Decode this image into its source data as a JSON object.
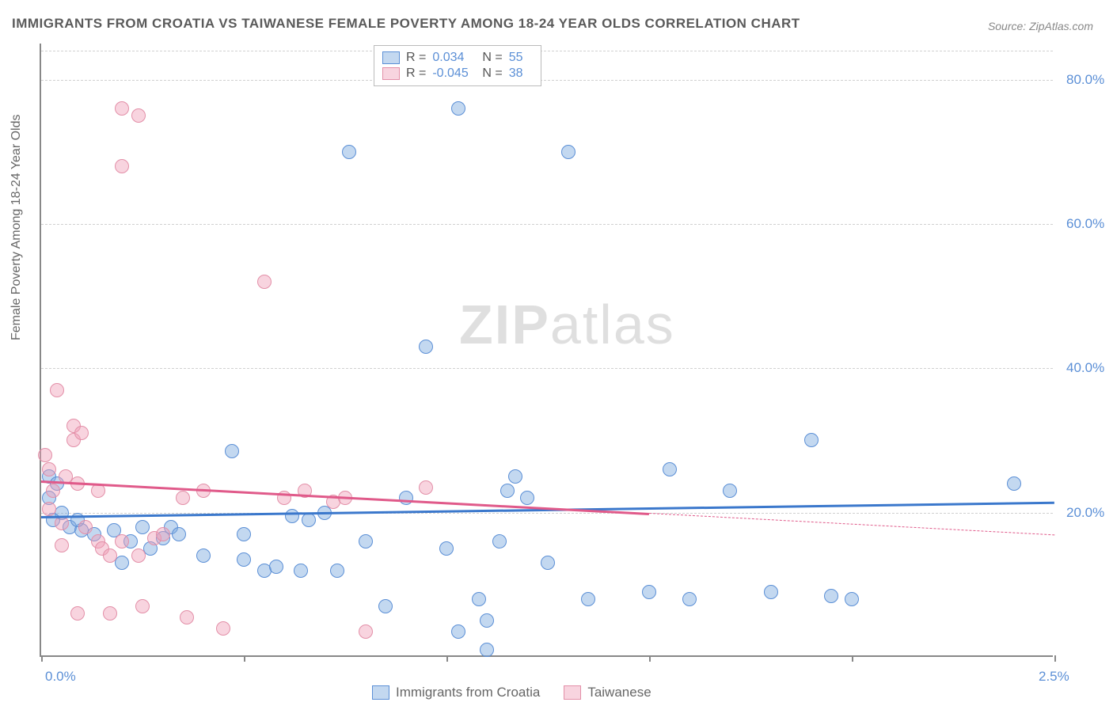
{
  "title": "IMMIGRANTS FROM CROATIA VS TAIWANESE FEMALE POVERTY AMONG 18-24 YEAR OLDS CORRELATION CHART",
  "source": "Source: ZipAtlas.com",
  "y_axis_title": "Female Poverty Among 18-24 Year Olds",
  "watermark_a": "ZIP",
  "watermark_b": "atlas",
  "chart": {
    "type": "scatter",
    "xlim": [
      0.0,
      2.5
    ],
    "ylim": [
      0.0,
      85.0
    ],
    "x_ticks": [
      0.0,
      0.5,
      1.0,
      1.5,
      2.0,
      2.5
    ],
    "x_tick_labels": [
      "0.0%",
      "",
      "",
      "",
      "",
      "2.5%"
    ],
    "y_gridlines": [
      20.0,
      40.0,
      60.0,
      80.0
    ],
    "y_tick_labels": [
      "20.0%",
      "40.0%",
      "60.0%",
      "80.0%"
    ],
    "background_color": "#ffffff",
    "grid_color": "#d0d0d0",
    "axis_color": "#888888",
    "label_color": "#5b8fd6",
    "title_color": "#5a5a5a",
    "title_fontsize": 17,
    "tick_fontsize": 17,
    "series": [
      {
        "name": "Immigrants from Croatia",
        "fill": "rgba(123,168,222,0.45)",
        "stroke": "#5b8fd6",
        "marker_radius": 9,
        "R": "0.034",
        "N": "55",
        "trend": {
          "x1": 0.0,
          "y1": 19.5,
          "x2": 2.5,
          "y2": 21.5,
          "color": "#3b78cc",
          "solid_until_x": 2.5
        },
        "points": [
          [
            0.02,
            25.0
          ],
          [
            0.02,
            22.0
          ],
          [
            0.04,
            24.0
          ],
          [
            0.05,
            20.0
          ],
          [
            0.03,
            19.0
          ],
          [
            0.07,
            18.0
          ],
          [
            0.1,
            17.5
          ],
          [
            0.09,
            19.0
          ],
          [
            0.13,
            17.0
          ],
          [
            0.18,
            17.5
          ],
          [
            0.2,
            13.0
          ],
          [
            0.22,
            16.0
          ],
          [
            0.25,
            18.0
          ],
          [
            0.27,
            15.0
          ],
          [
            0.3,
            16.5
          ],
          [
            0.32,
            18.0
          ],
          [
            0.34,
            17.0
          ],
          [
            0.4,
            14.0
          ],
          [
            0.47,
            28.5
          ],
          [
            0.5,
            17.0
          ],
          [
            0.5,
            13.5
          ],
          [
            0.55,
            12.0
          ],
          [
            0.58,
            12.5
          ],
          [
            0.62,
            19.5
          ],
          [
            0.64,
            12.0
          ],
          [
            0.66,
            19.0
          ],
          [
            0.7,
            20.0
          ],
          [
            0.73,
            12.0
          ],
          [
            0.76,
            70.0
          ],
          [
            0.8,
            16.0
          ],
          [
            0.85,
            7.0
          ],
          [
            0.9,
            22.0
          ],
          [
            0.95,
            43.0
          ],
          [
            1.0,
            15.0
          ],
          [
            1.03,
            3.5
          ],
          [
            1.03,
            76.0
          ],
          [
            1.08,
            8.0
          ],
          [
            1.1,
            5.0
          ],
          [
            1.1,
            1.0
          ],
          [
            1.13,
            16.0
          ],
          [
            1.15,
            23.0
          ],
          [
            1.17,
            25.0
          ],
          [
            1.2,
            22.0
          ],
          [
            1.25,
            13.0
          ],
          [
            1.3,
            70.0
          ],
          [
            1.35,
            8.0
          ],
          [
            1.5,
            9.0
          ],
          [
            1.55,
            26.0
          ],
          [
            1.6,
            8.0
          ],
          [
            1.7,
            23.0
          ],
          [
            1.8,
            9.0
          ],
          [
            1.9,
            30.0
          ],
          [
            1.95,
            8.5
          ],
          [
            2.0,
            8.0
          ],
          [
            2.4,
            24.0
          ]
        ]
      },
      {
        "name": "Taiwanese",
        "fill": "rgba(240,160,185,0.45)",
        "stroke": "#e38fa8",
        "marker_radius": 9,
        "R": "-0.045",
        "N": "38",
        "trend": {
          "x1": 0.0,
          "y1": 24.5,
          "x2": 2.5,
          "y2": 17.0,
          "color": "#e05a8a",
          "solid_until_x": 1.5
        },
        "points": [
          [
            0.01,
            28.0
          ],
          [
            0.02,
            26.0
          ],
          [
            0.02,
            20.5
          ],
          [
            0.03,
            23.0
          ],
          [
            0.04,
            37.0
          ],
          [
            0.05,
            15.5
          ],
          [
            0.06,
            25.0
          ],
          [
            0.05,
            18.5
          ],
          [
            0.08,
            30.0
          ],
          [
            0.08,
            32.0
          ],
          [
            0.09,
            24.0
          ],
          [
            0.09,
            6.0
          ],
          [
            0.1,
            31.0
          ],
          [
            0.11,
            18.0
          ],
          [
            0.14,
            23.0
          ],
          [
            0.14,
            16.0
          ],
          [
            0.15,
            15.0
          ],
          [
            0.17,
            6.0
          ],
          [
            0.17,
            14.0
          ],
          [
            0.2,
            68.0
          ],
          [
            0.2,
            16.0
          ],
          [
            0.2,
            76.0
          ],
          [
            0.24,
            75.0
          ],
          [
            0.24,
            14.0
          ],
          [
            0.25,
            7.0
          ],
          [
            0.28,
            16.5
          ],
          [
            0.3,
            17.0
          ],
          [
            0.35,
            22.0
          ],
          [
            0.36,
            5.5
          ],
          [
            0.4,
            23.0
          ],
          [
            0.45,
            4.0
          ],
          [
            0.55,
            52.0
          ],
          [
            0.6,
            22.0
          ],
          [
            0.65,
            23.0
          ],
          [
            0.72,
            21.5
          ],
          [
            0.75,
            22.0
          ],
          [
            0.8,
            3.5
          ],
          [
            0.95,
            23.5
          ]
        ]
      }
    ],
    "stats_box": {
      "label_R": "R =",
      "label_N": "N ="
    },
    "legend_labels": [
      "Immigrants from Croatia",
      "Taiwanese"
    ]
  }
}
